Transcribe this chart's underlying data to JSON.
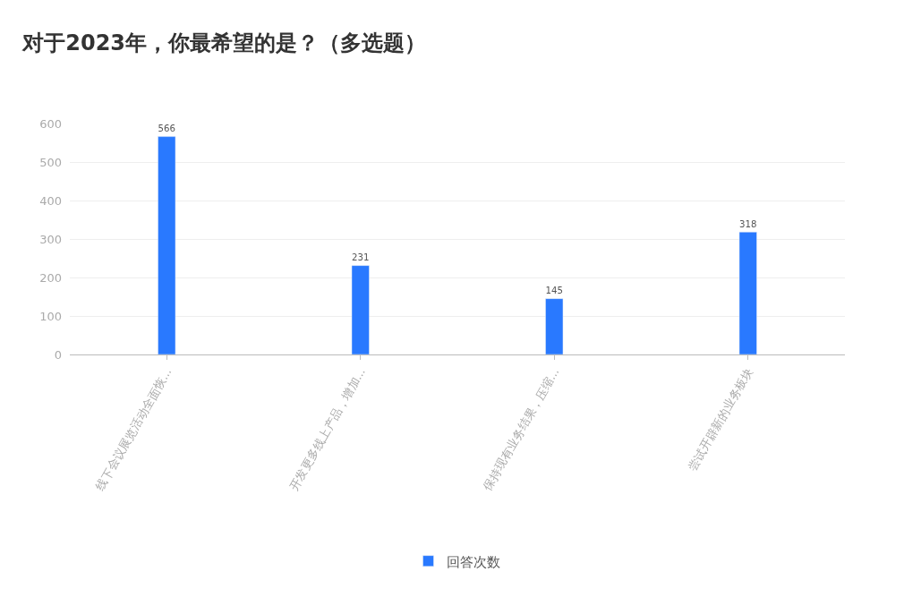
{
  "chart_data": {
    "type": "bar",
    "title": "对于2023年，你最希望的是？（多选题）",
    "categories": [
      "线下会议展览活动全面恢...",
      "开发更多线上产品，增加...",
      "保持现有业务结果，压缩...",
      "尝试开辟新的业务板块"
    ],
    "series": [
      {
        "name": "回答次数",
        "color": "#2979ff",
        "values": [
          566,
          231,
          145,
          318
        ]
      }
    ],
    "ylim": [
      0,
      600
    ],
    "yticks": [
      0,
      100,
      200,
      300,
      400,
      500,
      600
    ],
    "grid": "y",
    "data_labels": true,
    "legend": "bottom"
  }
}
